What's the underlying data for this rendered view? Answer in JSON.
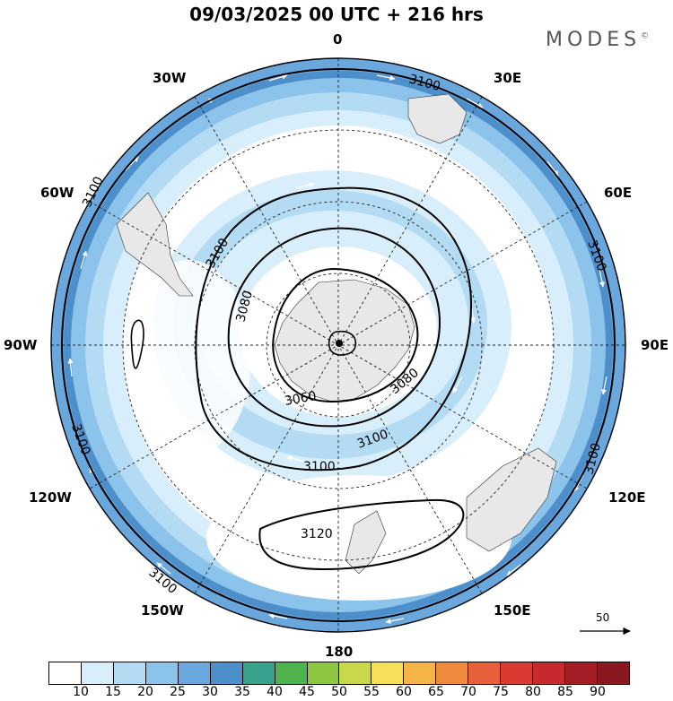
{
  "header": {
    "title": "09/03/2025  00 UTC  + 216 hrs",
    "brand": "MODES"
  },
  "map": {
    "projection": "polar-stereographic-south",
    "longitude_labels": {
      "top": "0",
      "bottom": "180",
      "left": "90W",
      "right": "90E",
      "nw_30": "30W",
      "ne_30": "30E",
      "nw_60": "60W",
      "ne_60": "60E",
      "sw_120": "120W",
      "se_120": "120E",
      "sw_150": "150W",
      "se_150": "150E"
    },
    "contour_labels": [
      "3100",
      "3100",
      "3100",
      "3100",
      "3100",
      "3100",
      "3100",
      "3100",
      "3080",
      "3060",
      "3080",
      "3120"
    ],
    "fill_colors": {
      "band_15": "#d8eefb",
      "band_20": "#b3dcf4",
      "band_25": "#8cc3ea",
      "band_30": "#6aa7dc",
      "band_35": "#4d8fcb",
      "land": "#e8e8e8"
    }
  },
  "reference_vector": {
    "label": "50"
  },
  "colorbar": {
    "labels": [
      "10",
      "15",
      "20",
      "25",
      "30",
      "35",
      "40",
      "45",
      "50",
      "55",
      "60",
      "65",
      "70",
      "75",
      "80",
      "85",
      "90"
    ],
    "colors": [
      "#ffffff",
      "#d8eefb",
      "#b3dcf4",
      "#8cc3ea",
      "#6aa7dc",
      "#4d8fcb",
      "#3aa28a",
      "#4cb34f",
      "#8dc63f",
      "#c8d84a",
      "#f6df5b",
      "#f5b548",
      "#ef8a3c",
      "#e8603a",
      "#d93a32",
      "#c42a2e",
      "#a31d24",
      "#8a1820"
    ]
  }
}
